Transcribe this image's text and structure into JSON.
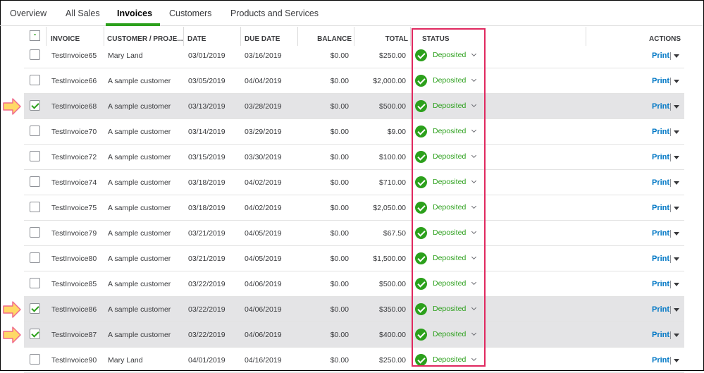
{
  "tabs": [
    {
      "label": "Overview",
      "active": false
    },
    {
      "label": "All Sales",
      "active": false
    },
    {
      "label": "Invoices",
      "active": true
    },
    {
      "label": "Customers",
      "active": false
    },
    {
      "label": "Products and Services",
      "active": false
    }
  ],
  "table": {
    "select_all_mark": "-",
    "headers": {
      "invoice": "INVOICE",
      "customer": "CUSTOMER / PROJE...",
      "date": "DATE",
      "due_date": "DUE DATE",
      "balance": "BALANCE",
      "total": "TOTAL",
      "status": "STATUS",
      "actions": "ACTIONS"
    },
    "rows": [
      {
        "invoice": "TestInvoice65",
        "customer": "Mary Land",
        "date": "03/01/2019",
        "due_date": "03/16/2019",
        "balance": "$0.00",
        "total": "$250.00",
        "status": "Deposited",
        "action": "Print",
        "checked": false
      },
      {
        "invoice": "TestInvoice66",
        "customer": "A sample customer",
        "date": "03/05/2019",
        "due_date": "04/04/2019",
        "balance": "$0.00",
        "total": "$2,000.00",
        "status": "Deposited",
        "action": "Print",
        "checked": false
      },
      {
        "invoice": "TestInvoice68",
        "customer": "A sample customer",
        "date": "03/13/2019",
        "due_date": "03/28/2019",
        "balance": "$0.00",
        "total": "$500.00",
        "status": "Deposited",
        "action": "Print",
        "checked": true
      },
      {
        "invoice": "TestInvoice70",
        "customer": "A sample customer",
        "date": "03/14/2019",
        "due_date": "03/29/2019",
        "balance": "$0.00",
        "total": "$9.00",
        "status": "Deposited",
        "action": "Print",
        "checked": false
      },
      {
        "invoice": "TestInvoice72",
        "customer": "A sample customer",
        "date": "03/15/2019",
        "due_date": "03/30/2019",
        "balance": "$0.00",
        "total": "$100.00",
        "status": "Deposited",
        "action": "Print",
        "checked": false
      },
      {
        "invoice": "TestInvoice74",
        "customer": "A sample customer",
        "date": "03/18/2019",
        "due_date": "04/02/2019",
        "balance": "$0.00",
        "total": "$710.00",
        "status": "Deposited",
        "action": "Print",
        "checked": false
      },
      {
        "invoice": "TestInvoice75",
        "customer": "A sample customer",
        "date": "03/18/2019",
        "due_date": "04/02/2019",
        "balance": "$0.00",
        "total": "$2,050.00",
        "status": "Deposited",
        "action": "Print",
        "checked": false
      },
      {
        "invoice": "TestInvoice79",
        "customer": "A sample customer",
        "date": "03/21/2019",
        "due_date": "04/05/2019",
        "balance": "$0.00",
        "total": "$67.50",
        "status": "Deposited",
        "action": "Print",
        "checked": false
      },
      {
        "invoice": "TestInvoice80",
        "customer": "A sample customer",
        "date": "03/21/2019",
        "due_date": "04/05/2019",
        "balance": "$0.00",
        "total": "$1,500.00",
        "status": "Deposited",
        "action": "Print",
        "checked": false
      },
      {
        "invoice": "TestInvoice85",
        "customer": "A sample customer",
        "date": "03/22/2019",
        "due_date": "04/06/2019",
        "balance": "$0.00",
        "total": "$500.00",
        "status": "Deposited",
        "action": "Print",
        "checked": false
      },
      {
        "invoice": "TestInvoice86",
        "customer": "A sample customer",
        "date": "03/22/2019",
        "due_date": "04/06/2019",
        "balance": "$0.00",
        "total": "$350.00",
        "status": "Deposited",
        "action": "Print",
        "checked": true
      },
      {
        "invoice": "TestInvoice87",
        "customer": "A sample customer",
        "date": "03/22/2019",
        "due_date": "04/06/2019",
        "balance": "$0.00",
        "total": "$400.00",
        "status": "Deposited",
        "action": "Print",
        "checked": true
      },
      {
        "invoice": "TestInvoice90",
        "customer": "Mary Land",
        "date": "04/01/2019",
        "due_date": "04/16/2019",
        "balance": "$0.00",
        "total": "$250.00",
        "status": "Deposited",
        "action": "Print",
        "checked": false
      }
    ]
  },
  "colors": {
    "accent": "#2ca01c",
    "link": "#0077c5",
    "highlight_box": "#e0285f",
    "arrow_fill": "#ffd966",
    "arrow_stroke": "#f06a8a"
  },
  "icons": {
    "status": "check-circle-icon",
    "dropdown": "chevron-down-icon",
    "actions": "caret-down-icon",
    "annotation": "right-arrow-icon"
  }
}
